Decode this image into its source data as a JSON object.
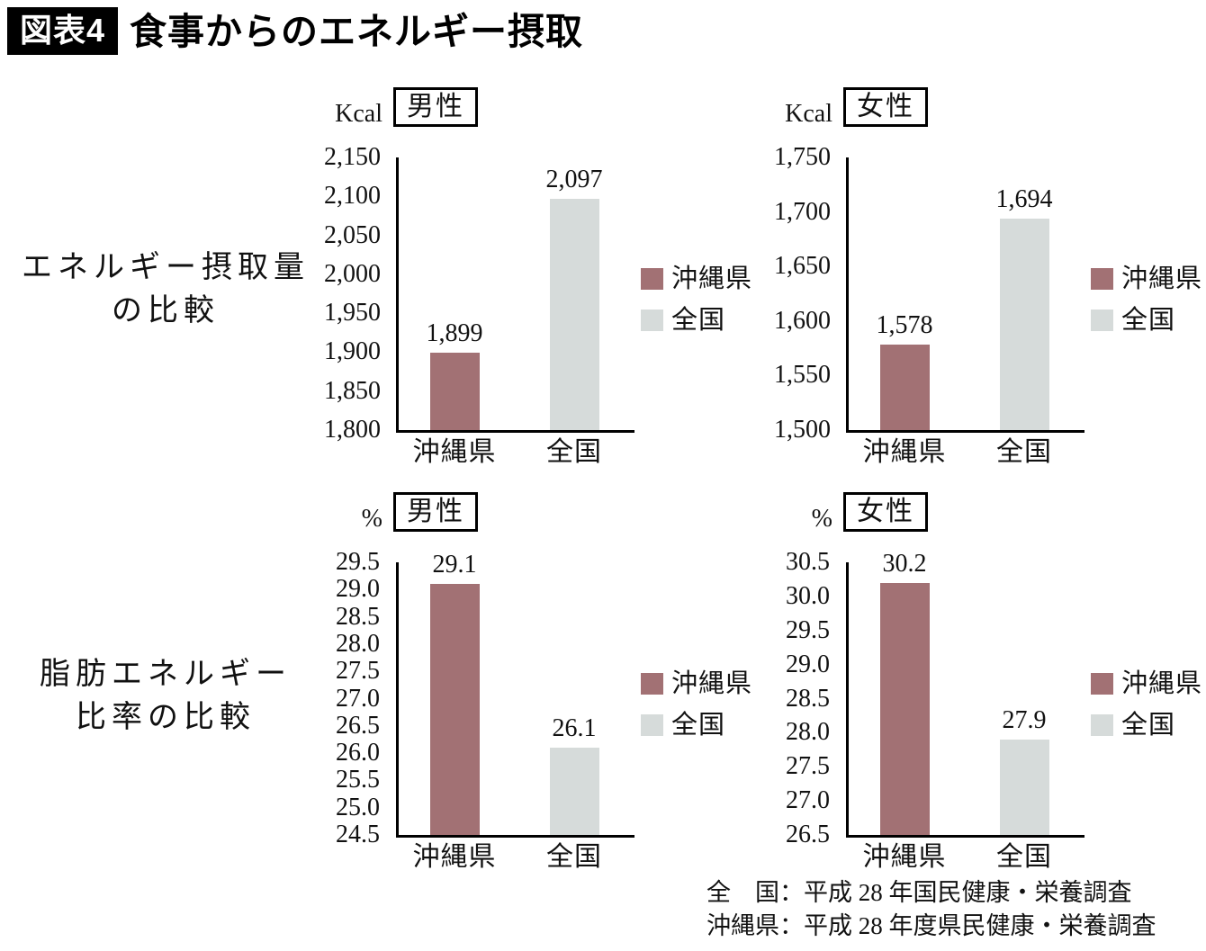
{
  "header": {
    "tag": "図表4",
    "title": "食事からのエネルギー摂取"
  },
  "row_labels": [
    {
      "line1": "エネルギー摂取量",
      "line2": "の比較"
    },
    {
      "line1": "脂肪エネルギー",
      "line2": "比率の比較"
    }
  ],
  "colors": {
    "okinawa": "#a27174",
    "national": "#d6dbda",
    "axis": "#000000",
    "tag_bg": "#000000",
    "tag_fg": "#ffffff"
  },
  "footnotes": [
    "全　国：平成 28 年国民健康・栄養調査",
    "沖縄県：平成 28 年度県民健康・栄養調査"
  ],
  "chart_data": [
    {
      "id": "energy-intake-male",
      "type": "bar",
      "group_title": "エネルギー摂取量の比較",
      "gender": "男性",
      "unit": "Kcal",
      "categories": [
        "沖縄県",
        "全国"
      ],
      "values": [
        1899,
        2097
      ],
      "value_labels": [
        "1,899",
        "2,097"
      ],
      "series_keys": [
        "okinawa",
        "national"
      ],
      "ylim": [
        1800,
        2150
      ],
      "yticks": [
        "2,150",
        "2,100",
        "2,050",
        "2,000",
        "1,950",
        "1,900",
        "1,850",
        "1,800"
      ],
      "legend": [
        "沖縄県",
        "全国"
      ],
      "legend_position": "right",
      "grid": false
    },
    {
      "id": "energy-intake-female",
      "type": "bar",
      "group_title": "エネルギー摂取量の比較",
      "gender": "女性",
      "unit": "Kcal",
      "categories": [
        "沖縄県",
        "全国"
      ],
      "values": [
        1578,
        1694
      ],
      "value_labels": [
        "1,578",
        "1,694"
      ],
      "series_keys": [
        "okinawa",
        "national"
      ],
      "ylim": [
        1500,
        1750
      ],
      "yticks": [
        "1,750",
        "1,700",
        "1,650",
        "1,600",
        "1,550",
        "1,500"
      ],
      "legend": [
        "沖縄県",
        "全国"
      ],
      "legend_position": "right",
      "grid": false
    },
    {
      "id": "fat-energy-ratio-male",
      "type": "bar",
      "group_title": "脂肪エネルギー比率の比較",
      "gender": "男性",
      "unit": "%",
      "categories": [
        "沖縄県",
        "全国"
      ],
      "values": [
        29.1,
        26.1
      ],
      "value_labels": [
        "29.1",
        "26.1"
      ],
      "series_keys": [
        "okinawa",
        "national"
      ],
      "ylim": [
        24.5,
        29.5
      ],
      "yticks": [
        "29.5",
        "29.0",
        "28.5",
        "28.0",
        "27.5",
        "27.0",
        "26.5",
        "26.0",
        "25.5",
        "25.0",
        "24.5"
      ],
      "legend": [
        "沖縄県",
        "全国"
      ],
      "legend_position": "right",
      "grid": false
    },
    {
      "id": "fat-energy-ratio-female",
      "type": "bar",
      "group_title": "脂肪エネルギー比率の比較",
      "gender": "女性",
      "unit": "%",
      "categories": [
        "沖縄県",
        "全国"
      ],
      "values": [
        30.2,
        27.9
      ],
      "value_labels": [
        "30.2",
        "27.9"
      ],
      "series_keys": [
        "okinawa",
        "national"
      ],
      "ylim": [
        26.5,
        30.5
      ],
      "yticks": [
        "30.5",
        "30.0",
        "29.5",
        "29.0",
        "28.5",
        "28.0",
        "27.5",
        "27.0",
        "26.5"
      ],
      "legend": [
        "沖縄県",
        "全国"
      ],
      "legend_position": "right",
      "grid": false
    }
  ]
}
